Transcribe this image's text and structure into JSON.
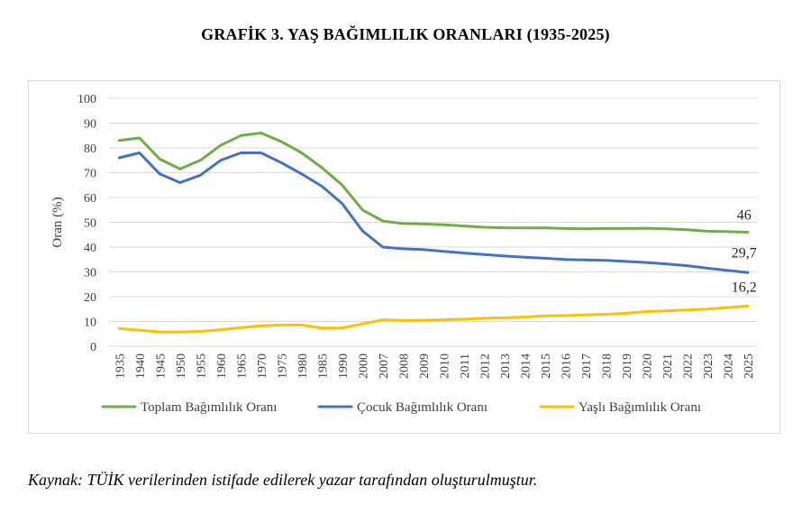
{
  "title": "GRAFİK 3. YAŞ BAĞIMLILIK ORANLARI (1935-2025)",
  "caption": "Kaynak: TÜİK verilerinden istifade edilerek yazar tarafından oluşturulmuştur.",
  "chart_data": {
    "type": "line",
    "ylabel": "Oran (%)",
    "xlabel": "",
    "ylim": [
      0,
      100
    ],
    "yticks": [
      0,
      10,
      20,
      30,
      40,
      50,
      60,
      70,
      80,
      90,
      100
    ],
    "grid": "horizontal",
    "legend_position": "bottom",
    "categories": [
      "1935",
      "1940",
      "1945",
      "1950",
      "1955",
      "1960",
      "1965",
      "1970",
      "1975",
      "1980",
      "1985",
      "1990",
      "2000",
      "2007",
      "2008",
      "2009",
      "2010",
      "2011",
      "2012",
      "2013",
      "2014",
      "2015",
      "2016",
      "2017",
      "2018",
      "2019",
      "2020",
      "2021",
      "2022",
      "2023",
      "2024",
      "2025"
    ],
    "series": [
      {
        "name": "Toplam Bağımlılık Oranı",
        "color": "#70AD47",
        "values": [
          83,
          84,
          75.5,
          71.5,
          75,
          81,
          85,
          86,
          82.5,
          78,
          72,
          65,
          55,
          50.5,
          49.5,
          49.3,
          49,
          48.5,
          48,
          47.8,
          47.7,
          47.7,
          47.5,
          47.4,
          47.5,
          47.5,
          47.6,
          47.4,
          47,
          46.4,
          46.2,
          46
        ]
      },
      {
        "name": "Çocuk Bağımlılık Oranı",
        "color": "#4472C4",
        "values": [
          76,
          78,
          69.5,
          66,
          69,
          75,
          78,
          78,
          74,
          69.5,
          64.5,
          57.5,
          46.5,
          40,
          39.3,
          39,
          38.3,
          37.6,
          37,
          36.4,
          35.9,
          35.5,
          35,
          34.8,
          34.6,
          34.2,
          33.8,
          33.2,
          32.5,
          31.5,
          30.6,
          29.7
        ]
      },
      {
        "name": "Yaşlı Bağımlılık Oranı",
        "color": "#FFC000",
        "values": [
          7.2,
          6.5,
          5.8,
          5.8,
          6,
          6.7,
          7.5,
          8.3,
          8.6,
          8.6,
          7.3,
          7.4,
          9,
          10.7,
          10.4,
          10.5,
          10.7,
          10.9,
          11.3,
          11.5,
          11.8,
          12.3,
          12.4,
          12.7,
          12.9,
          13.3,
          14,
          14.3,
          14.6,
          15,
          15.6,
          16.2
        ]
      }
    ],
    "end_labels": [
      "46",
      "29,7",
      "16,2"
    ]
  }
}
